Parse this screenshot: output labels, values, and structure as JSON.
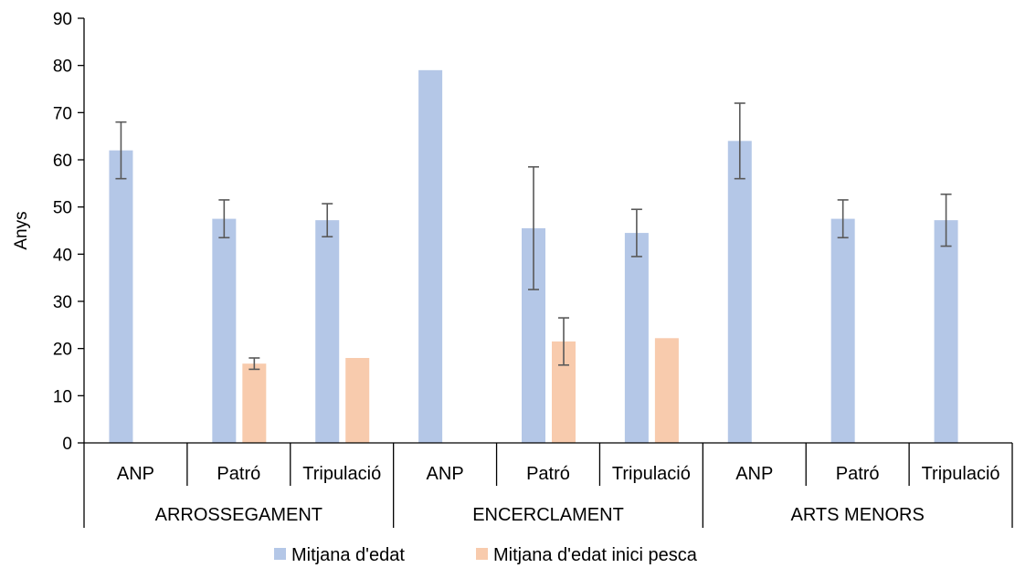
{
  "chart_data": {
    "type": "bar",
    "ylabel": "Anys",
    "ylim": [
      0,
      90
    ],
    "yticks": [
      0,
      10,
      20,
      30,
      40,
      50,
      60,
      70,
      80,
      90
    ],
    "groups": [
      {
        "label": "ARROSSEGAMENT",
        "categories": [
          "ANP",
          "Patró",
          "Tripulació"
        ]
      },
      {
        "label": "ENCERCLAMENT",
        "categories": [
          "ANP",
          "Patró",
          "Tripulació"
        ]
      },
      {
        "label": "ARTS MENORS",
        "categories": [
          "ANP",
          "Patró",
          "Tripulació"
        ]
      }
    ],
    "series": [
      {
        "name": "Mitjana d'edat",
        "color": "#b4c7e7",
        "values": [
          62,
          47.5,
          47.2,
          79,
          45.5,
          44.5,
          64,
          47.5,
          47.2
        ],
        "errors": [
          6,
          4,
          3.5,
          null,
          13,
          5,
          8,
          4,
          5.5
        ]
      },
      {
        "name": "Mitjana d'edat inici pesca",
        "color": "#f8cbad",
        "values": [
          null,
          16.8,
          18,
          null,
          21.5,
          22.2,
          null,
          null,
          null
        ],
        "errors": [
          null,
          1.2,
          null,
          null,
          5,
          null,
          null,
          null,
          null
        ]
      }
    ],
    "grid": false,
    "legend": "bottom"
  }
}
